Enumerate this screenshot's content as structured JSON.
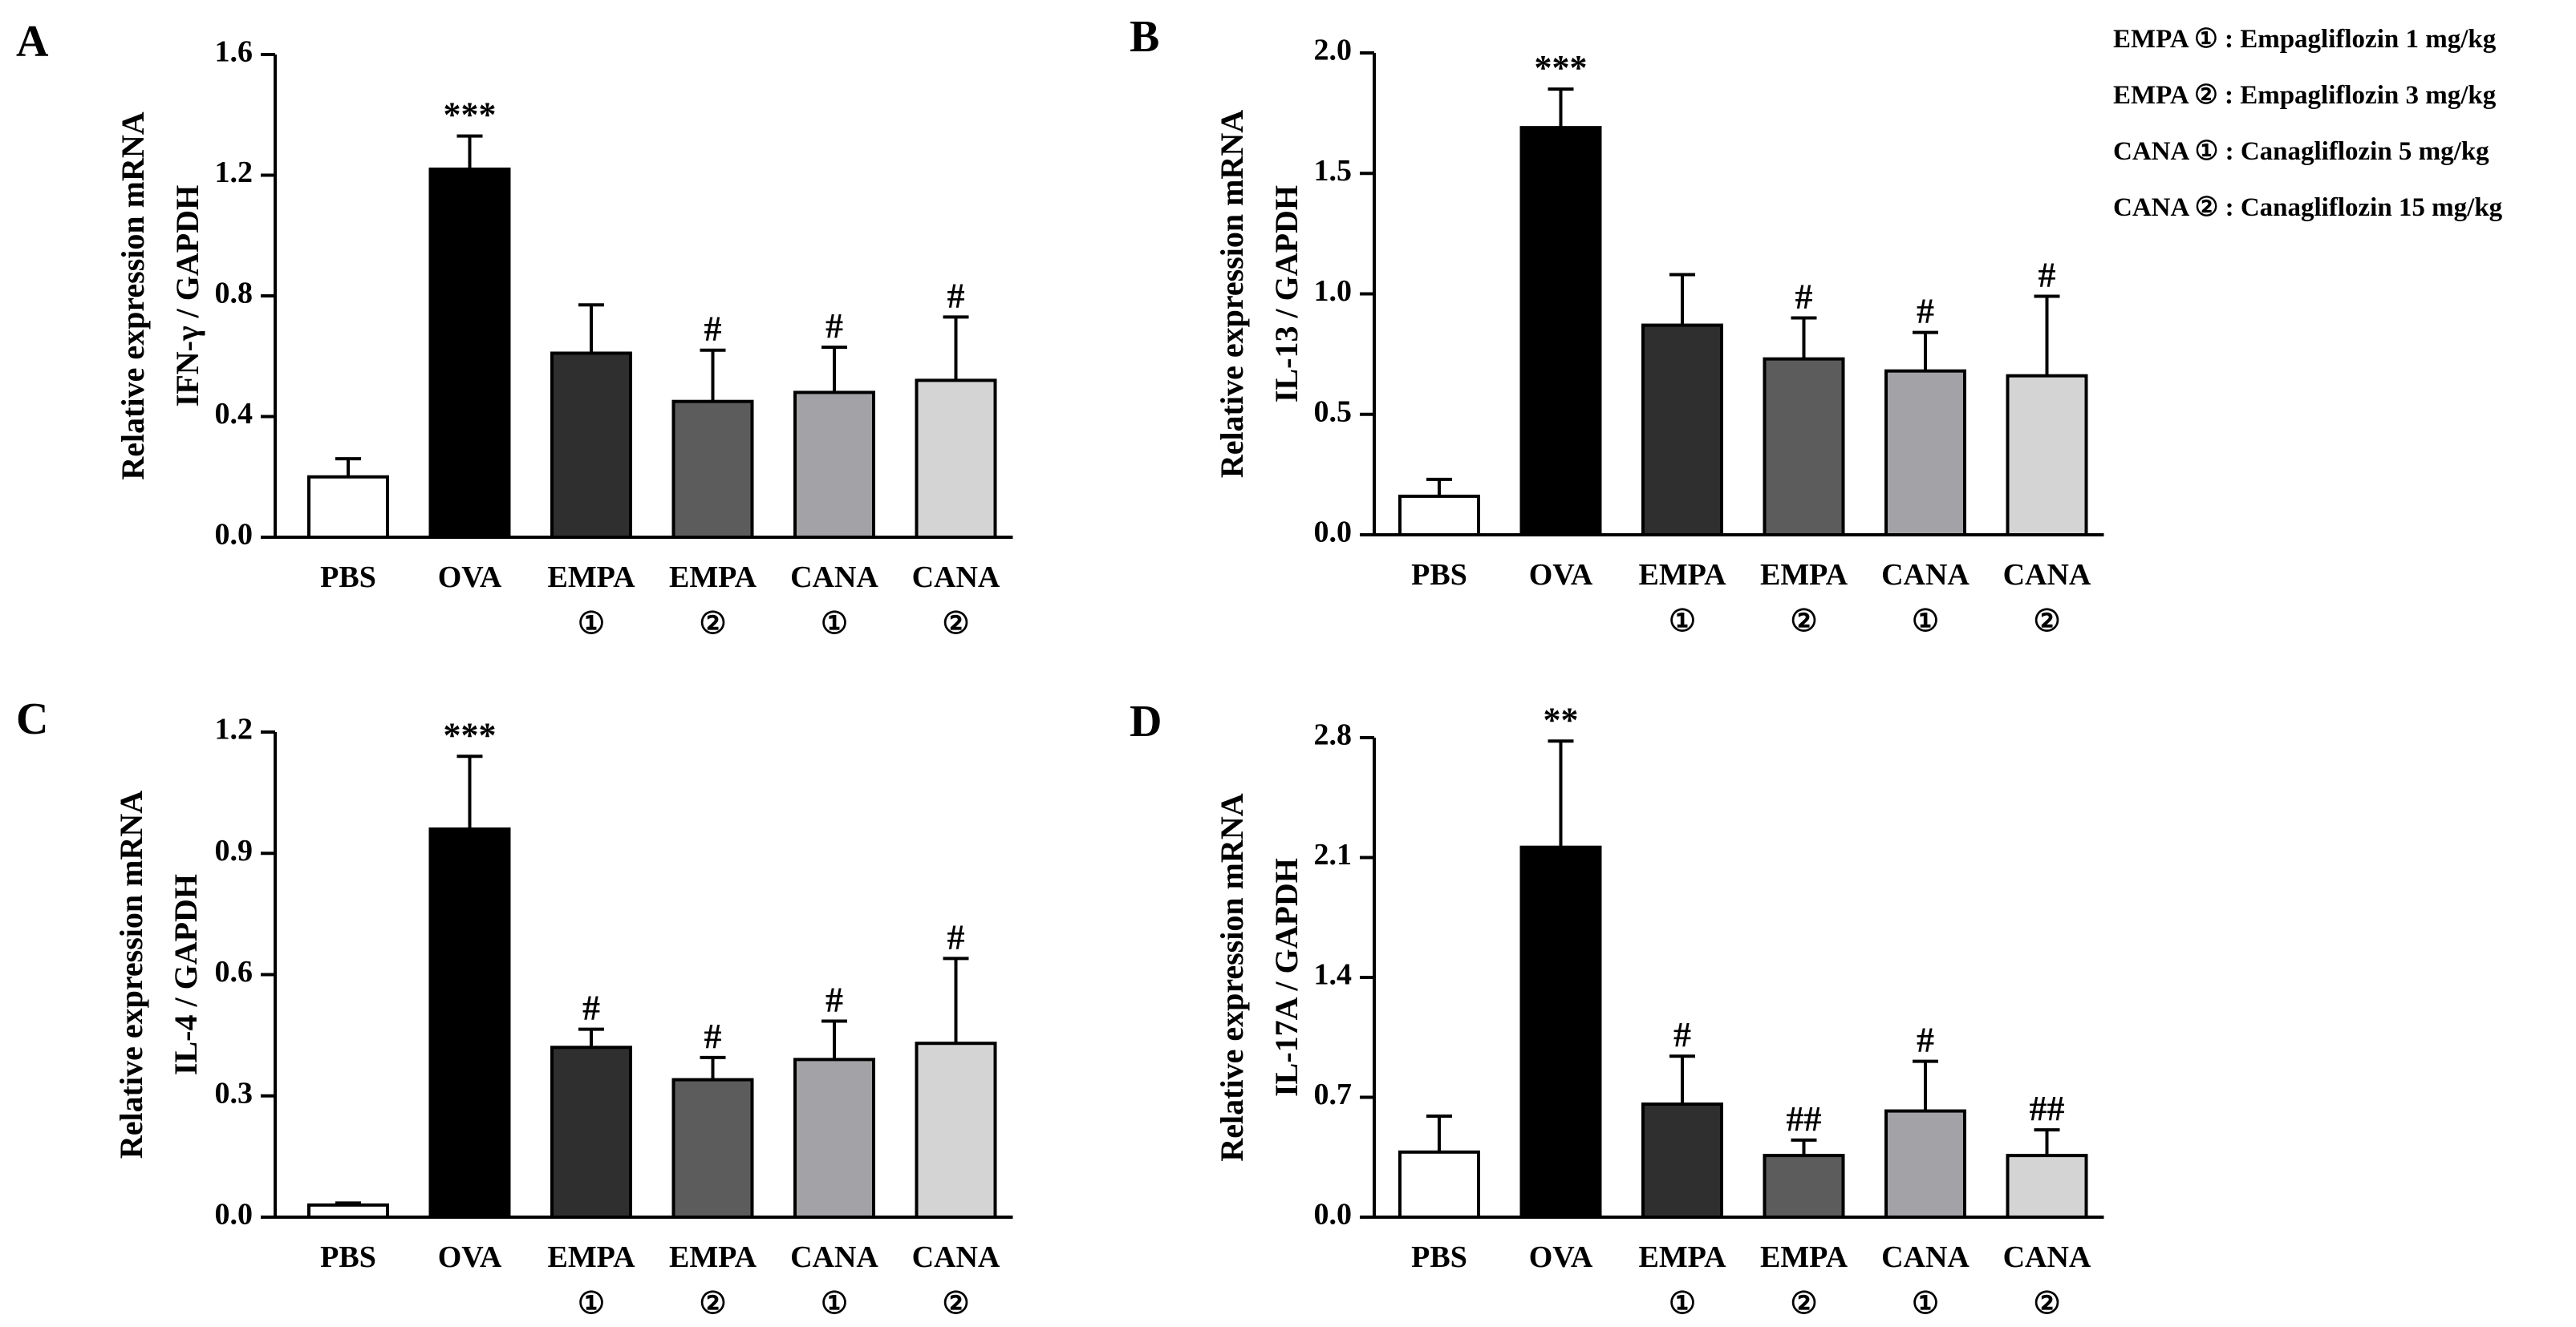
{
  "legend": [
    "EMPA ① : Empagliflozin 1 mg/kg",
    "EMPA ② : Empagliflozin 3 mg/kg",
    "CANA ① : Canagliflozin 5 mg/kg",
    "CANA ② : Canagliflozin 15 mg/kg"
  ],
  "chart_data": [
    {
      "type": "bar",
      "panel": "A",
      "ylabel_line1": "Relative expression mRNA",
      "ylabel_line2": "IFN-γ / GAPDH",
      "categories": [
        [
          "PBS"
        ],
        [
          "OVA"
        ],
        [
          "EMPA",
          "①"
        ],
        [
          "EMPA",
          "②"
        ],
        [
          "CANA",
          "①"
        ],
        [
          "CANA",
          "②"
        ]
      ],
      "values": [
        0.2,
        1.22,
        0.61,
        0.45,
        0.48,
        0.52
      ],
      "errors": [
        0.06,
        0.11,
        0.16,
        0.17,
        0.15,
        0.21
      ],
      "significance": [
        "",
        "***",
        "",
        "#",
        "#",
        "#"
      ],
      "ylim": [
        0,
        1.6
      ],
      "yticks": [
        0.0,
        0.4,
        0.8,
        1.2,
        1.6
      ],
      "ytick_labels": [
        "0.0",
        "0.4",
        "0.8",
        "1.2",
        "1.6"
      ]
    },
    {
      "type": "bar",
      "panel": "B",
      "ylabel_line1": "Relative expression mRNA",
      "ylabel_line2": "IL-13 / GAPDH",
      "categories": [
        [
          "PBS"
        ],
        [
          "OVA"
        ],
        [
          "EMPA",
          "①"
        ],
        [
          "EMPA",
          "②"
        ],
        [
          "CANA",
          "①"
        ],
        [
          "CANA",
          "②"
        ]
      ],
      "values": [
        0.16,
        1.69,
        0.87,
        0.73,
        0.68,
        0.66
      ],
      "errors": [
        0.07,
        0.16,
        0.21,
        0.17,
        0.16,
        0.33
      ],
      "significance": [
        "",
        "***",
        "",
        "#",
        "#",
        "#"
      ],
      "ylim": [
        0,
        2.0
      ],
      "yticks": [
        0.0,
        0.5,
        1.0,
        1.5,
        2.0
      ],
      "ytick_labels": [
        "0.0",
        "0.5",
        "1.0",
        "1.5",
        "2.0"
      ]
    },
    {
      "type": "bar",
      "panel": "C",
      "ylabel_line1": "Relative expression mRNA",
      "ylabel_line2": "IL-4 / GAPDH",
      "categories": [
        [
          "PBS"
        ],
        [
          "OVA"
        ],
        [
          "EMPA",
          "①"
        ],
        [
          "EMPA",
          "②"
        ],
        [
          "CANA",
          "①"
        ],
        [
          "CANA",
          "②"
        ]
      ],
      "values": [
        0.03,
        0.96,
        0.42,
        0.34,
        0.39,
        0.43
      ],
      "errors": [
        0.005,
        0.18,
        0.045,
        0.055,
        0.095,
        0.21
      ],
      "significance": [
        "",
        "***",
        "#",
        "#",
        "#",
        "#"
      ],
      "ylim": [
        0,
        1.2
      ],
      "yticks": [
        0.0,
        0.3,
        0.6,
        0.9,
        1.2
      ],
      "ytick_labels": [
        "0.0",
        "0.3",
        "0.6",
        "0.9",
        "1.2"
      ]
    },
    {
      "type": "bar",
      "panel": "D",
      "ylabel_line1": "Relative expression mRNA",
      "ylabel_line2": "IL-17A / GAPDH",
      "categories": [
        [
          "PBS"
        ],
        [
          "OVA"
        ],
        [
          "EMPA",
          "①"
        ],
        [
          "EMPA",
          "②"
        ],
        [
          "CANA",
          "①"
        ],
        [
          "CANA",
          "②"
        ]
      ],
      "values": [
        0.38,
        2.16,
        0.66,
        0.36,
        0.62,
        0.36
      ],
      "errors": [
        0.21,
        0.62,
        0.28,
        0.09,
        0.29,
        0.15
      ],
      "significance": [
        "",
        "**",
        "#",
        "##",
        "#",
        "##"
      ],
      "ylim": [
        0,
        2.8
      ],
      "yticks": [
        0.0,
        0.7,
        1.4,
        2.1,
        2.8
      ],
      "ytick_labels": [
        "0.0",
        "0.7",
        "1.4",
        "2.1",
        "2.8"
      ]
    }
  ],
  "bar_colors": [
    "#ffffff",
    "#000000",
    "#2f2f2f",
    "#5c5c5c",
    "#a3a3a7",
    "#d4d4d4"
  ]
}
